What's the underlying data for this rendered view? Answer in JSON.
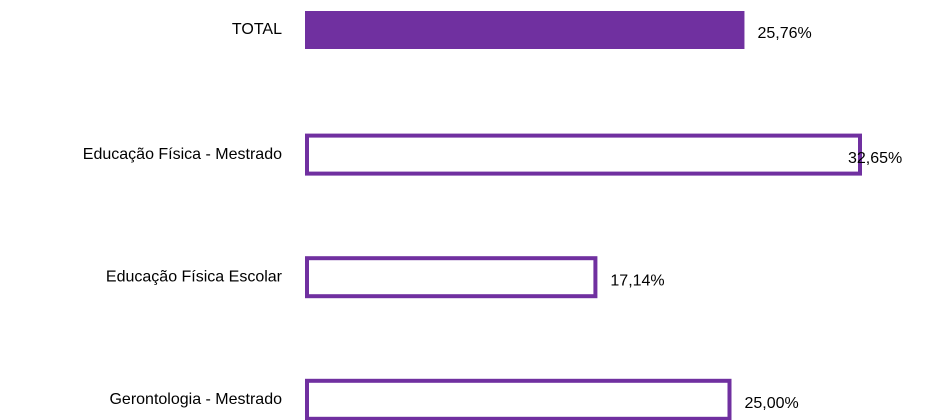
{
  "chart_data": {
    "type": "bar",
    "orientation": "horizontal",
    "categories": [
      "TOTAL",
      "Educação Física - Mestrado",
      "Educação Física Escolar",
      "Gerontologia - Mestrado"
    ],
    "values": [
      25.76,
      32.65,
      17.14,
      25.0
    ],
    "value_labels": [
      "25,76%",
      "32,65%",
      "17,14%",
      "25,00%"
    ],
    "color": "#7030a0",
    "filled": [
      true,
      false,
      false,
      false
    ]
  }
}
